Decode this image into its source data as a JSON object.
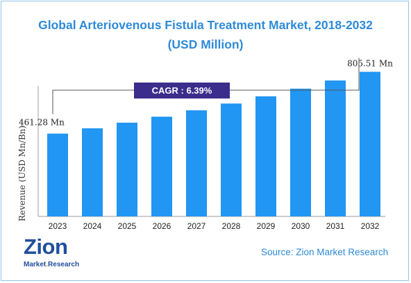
{
  "title_line1": "Global Arteriovenous Fistula Treatment Market, 2018-2032",
  "title_line2": "(USD Million)",
  "source": "Source: Zion Market Research",
  "logo": {
    "word": "Zion",
    "sub_a": "Market",
    "sub_dot": ".",
    "sub_b": "Research"
  },
  "colors": {
    "bar": "#2196f3",
    "title": "#2e8ad8",
    "cagr_bg": "#3a2d8c",
    "axis": "#9e9e9e"
  },
  "chart_data": {
    "type": "bar",
    "title": "Global Arteriovenous Fistula Treatment Market, 2018-2032",
    "xlabel": "",
    "ylabel": "Revenue (USD Mn/Bn)",
    "categories": [
      "2023",
      "2024",
      "2025",
      "2026",
      "2027",
      "2028",
      "2029",
      "2030",
      "2031",
      "2032"
    ],
    "values": [
      461.28,
      490.75,
      522.11,
      555.47,
      590.96,
      628.72,
      668.89,
      711.63,
      757.1,
      805.51
    ],
    "ylim": [
      0,
      850
    ],
    "grid": false,
    "annotations": {
      "cagr": "CAGR :  6.39%",
      "first_label": "461.28 Mn",
      "last_label": "805.51 Mn"
    }
  }
}
